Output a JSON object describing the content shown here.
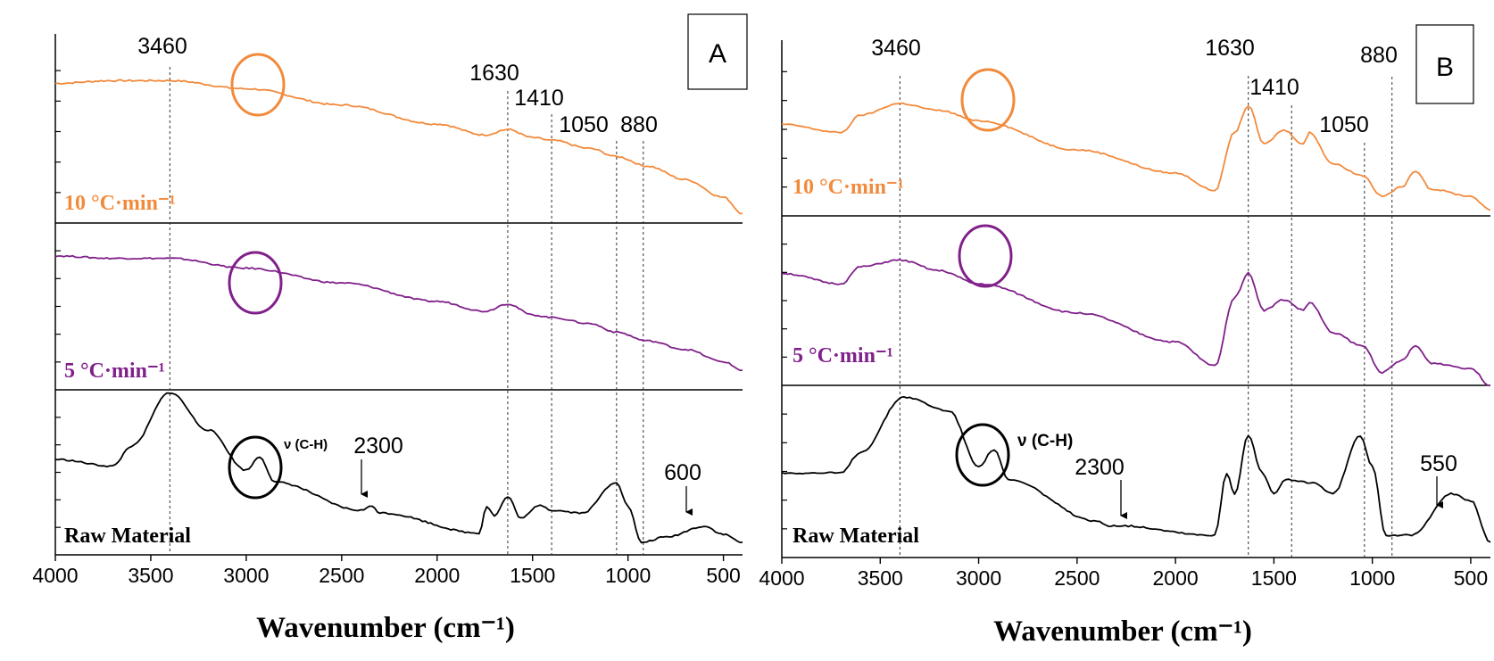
{
  "chart_data": [
    {
      "panel": "A",
      "type": "line",
      "xlabel": "Wavenumber (cm⁻¹)",
      "xlim": [
        4000,
        400
      ],
      "xticks": [
        4000,
        3500,
        3000,
        2500,
        2000,
        1500,
        1000,
        500
      ],
      "xtick_labels": [
        "4000",
        "3500",
        "3000",
        "2500",
        "2000",
        "1500",
        "1000",
        "500"
      ],
      "peak_lines": [
        3400,
        1630,
        1400,
        1060,
        920
      ],
      "peak_labels": [
        "3460",
        "1630",
        "1410",
        "1050",
        "880"
      ],
      "series": [
        {
          "name": "10 °C·min⁻¹",
          "color": "#f28a3c",
          "x": [
            4000,
            3700,
            3400,
            3000,
            2500,
            2000,
            1750,
            1630,
            1500,
            1400,
            1200,
            1060,
            900,
            700,
            500,
            400
          ],
          "values": [
            0.78,
            0.8,
            0.8,
            0.74,
            0.62,
            0.48,
            0.4,
            0.44,
            0.38,
            0.36,
            0.3,
            0.24,
            0.17,
            0.07,
            -0.06,
            -0.18
          ]
        },
        {
          "name": "5 °C·min⁻¹",
          "color": "#80208a",
          "x": [
            4000,
            3700,
            3400,
            3000,
            2500,
            2000,
            1750,
            1630,
            1500,
            1400,
            1200,
            1060,
            900,
            700,
            500,
            400
          ],
          "values": [
            0.82,
            0.8,
            0.8,
            0.72,
            0.6,
            0.45,
            0.37,
            0.43,
            0.34,
            0.32,
            0.27,
            0.2,
            0.13,
            0.06,
            -0.04,
            -0.11
          ]
        },
        {
          "name": "Raw Material",
          "color": "#000000",
          "x": [
            4000,
            3700,
            3600,
            3400,
            3200,
            3000,
            2930,
            2850,
            2400,
            2340,
            2300,
            1780,
            1740,
            1700,
            1630,
            1560,
            1460,
            1400,
            1240,
            1060,
            1000,
            930,
            800,
            600,
            500,
            400
          ],
          "values": [
            0.5,
            0.45,
            0.6,
            1.0,
            0.72,
            0.42,
            0.52,
            0.33,
            0.12,
            0.15,
            0.1,
            -0.05,
            0.15,
            0.08,
            0.22,
            0.06,
            0.16,
            0.12,
            0.1,
            0.33,
            0.15,
            -0.12,
            -0.08,
            0.0,
            -0.06,
            -0.12
          ]
        }
      ],
      "annotations": [
        {
          "text": "ν (C-H)",
          "at": 2940
        },
        {
          "text": "2300",
          "at": 2340
        },
        {
          "text": "600",
          "at": 560
        }
      ],
      "panel_label": "A"
    },
    {
      "panel": "B",
      "type": "line",
      "xlabel": "Wavenumber (cm⁻¹)",
      "xlim": [
        4000,
        400
      ],
      "xticks": [
        4000,
        3500,
        3000,
        2500,
        2000,
        1500,
        1000,
        500
      ],
      "xtick_labels": [
        "4000",
        "3500",
        "3000",
        "2500",
        "2000",
        "1500",
        "1000",
        "500"
      ],
      "peak_lines": [
        3400,
        1630,
        1410,
        1040,
        900
      ],
      "peak_labels": [
        "3460",
        "1630",
        "1410",
        "1050",
        "880"
      ],
      "series": [
        {
          "name": "10 °C·min⁻¹",
          "color": "#f28a3c",
          "x": [
            4000,
            3700,
            3600,
            3400,
            3200,
            3000,
            2500,
            2000,
            1800,
            1700,
            1630,
            1550,
            1450,
            1350,
            1320,
            1200,
            1050,
            950,
            850,
            780,
            700,
            500,
            400
          ],
          "values": [
            0.62,
            0.55,
            0.7,
            0.8,
            0.74,
            0.65,
            0.4,
            0.2,
            0.05,
            0.55,
            0.78,
            0.45,
            0.57,
            0.45,
            0.55,
            0.28,
            0.18,
            0.0,
            0.08,
            0.22,
            0.06,
            0.0,
            -0.12
          ]
        },
        {
          "name": "5 °C·min⁻¹",
          "color": "#80208a",
          "x": [
            4000,
            3700,
            3600,
            3400,
            3200,
            3000,
            2500,
            2000,
            1800,
            1700,
            1630,
            1550,
            1450,
            1350,
            1320,
            1200,
            1050,
            950,
            850,
            780,
            700,
            500,
            400
          ],
          "values": [
            0.7,
            0.62,
            0.75,
            0.8,
            0.72,
            0.62,
            0.4,
            0.18,
            0.0,
            0.52,
            0.7,
            0.42,
            0.5,
            0.42,
            0.48,
            0.25,
            0.15,
            -0.05,
            0.04,
            0.15,
            0.02,
            -0.02,
            -0.15
          ]
        },
        {
          "name": "Raw Material",
          "color": "#000000",
          "x": [
            4000,
            3700,
            3600,
            3380,
            3150,
            3000,
            2920,
            2850,
            2400,
            2340,
            2300,
            1800,
            1740,
            1700,
            1630,
            1560,
            1500,
            1440,
            1300,
            1200,
            1060,
            1000,
            930,
            800,
            600,
            500,
            400
          ],
          "values": [
            0.45,
            0.45,
            0.6,
            1.0,
            0.9,
            0.5,
            0.62,
            0.4,
            0.1,
            0.07,
            0.07,
            0.0,
            0.45,
            0.3,
            0.72,
            0.45,
            0.3,
            0.4,
            0.38,
            0.3,
            0.72,
            0.5,
            0.0,
            0.0,
            0.3,
            0.25,
            -0.05
          ]
        }
      ],
      "annotations": [
        {
          "text": "ν (C-H)",
          "at": 2930
        },
        {
          "text": "2300",
          "at": 2340
        },
        {
          "text": "550",
          "at": 520
        }
      ],
      "panel_label": "B"
    }
  ]
}
